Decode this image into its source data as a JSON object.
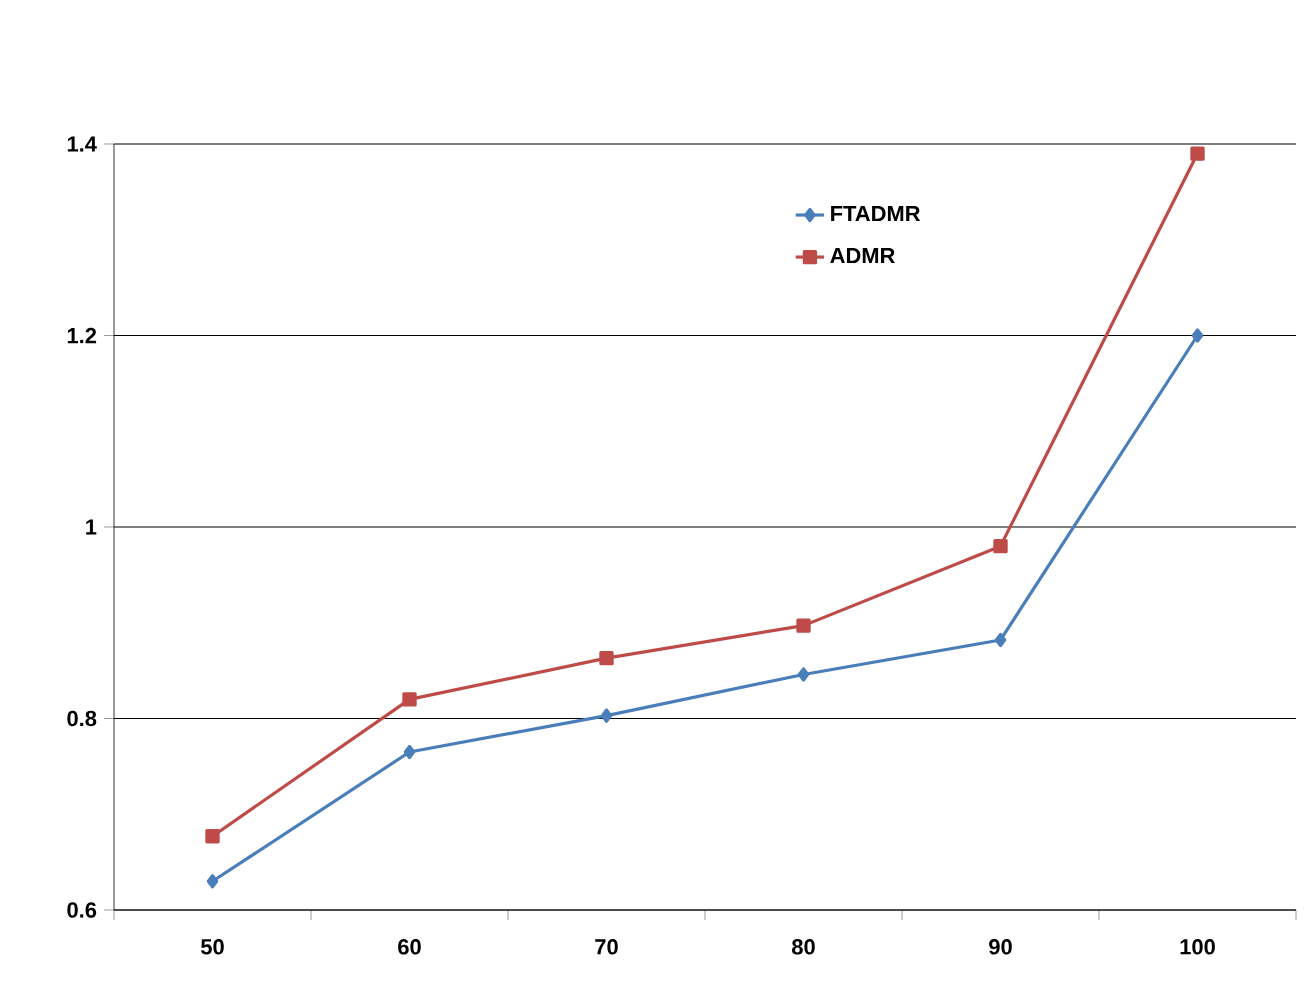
{
  "chart_data": {
    "type": "line",
    "categories": [
      "50",
      "60",
      "70",
      "80",
      "90",
      "100"
    ],
    "series": [
      {
        "name": "FTADMR",
        "color": "#4a7ebb",
        "marker": "diamond",
        "values": [
          0.63,
          0.765,
          0.803,
          0.846,
          0.882,
          1.2
        ]
      },
      {
        "name": "ADMR",
        "color": "#be4b48",
        "marker": "square",
        "values": [
          0.677,
          0.82,
          0.863,
          0.897,
          0.98,
          1.39
        ]
      }
    ],
    "ylim": [
      0.6,
      1.4
    ],
    "yticks": [
      0.6,
      0.8,
      1,
      1.2,
      1.4
    ],
    "grid": "y",
    "legend": "top right",
    "line_style": "solid"
  }
}
